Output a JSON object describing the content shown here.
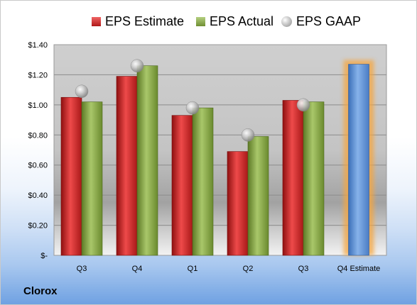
{
  "chart_data": {
    "type": "bar",
    "title": "",
    "xlabel": "",
    "ylabel": "",
    "ylim": [
      0,
      1.4
    ],
    "y_ticks": [
      "$-",
      "$0.20",
      "$0.40",
      "$0.60",
      "$0.80",
      "$1.00",
      "$1.20",
      "$1.40"
    ],
    "categories": [
      "Q3",
      "Q4",
      "Q1",
      "Q2",
      "Q3",
      "Q4 Estimate"
    ],
    "legend_position": "top",
    "grid": true,
    "series": [
      {
        "name": "EPS Estimate",
        "color": "#c42424",
        "values": [
          1.05,
          1.19,
          0.93,
          0.69,
          1.03,
          null
        ]
      },
      {
        "name": "EPS Actual",
        "color": "#86a83c",
        "values": [
          1.02,
          1.26,
          0.98,
          0.79,
          1.02,
          null
        ]
      },
      {
        "name": "EPS GAAP",
        "color": "#bdbdbd",
        "marker": "sphere",
        "values": [
          1.09,
          1.26,
          0.98,
          0.8,
          1.0,
          null
        ]
      },
      {
        "name": "Q4 Estimate",
        "color": "#5b8ed6",
        "highlight": "#f5a640",
        "values": [
          null,
          null,
          null,
          null,
          null,
          1.27
        ]
      }
    ]
  },
  "legend": {
    "estimate": "EPS Estimate",
    "actual": "EPS Actual",
    "gaap": "EPS GAAP"
  },
  "company": "Clorox"
}
